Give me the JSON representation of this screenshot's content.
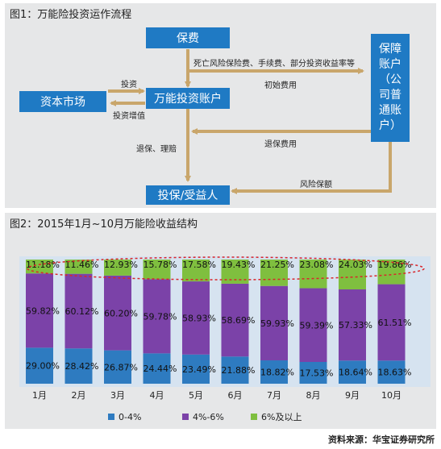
{
  "figure1": {
    "title": "图1：万能险投资运作流程",
    "nodes": {
      "premium": "保费",
      "capital_market": "资本市场",
      "ul_account": "万能投资账户",
      "guarantee_account": [
        "保障",
        "账户",
        "（公",
        "司普",
        "通账",
        "户）"
      ],
      "beneficiary": "投保/受益人"
    },
    "edges": {
      "fees": "死亡风险保险费、手续费、部分投资收益率等",
      "initial_fee": "初始费用",
      "invest": "投资",
      "invest_gain": "投资增值",
      "surrender_claim": "退保、理赔",
      "surrender_fee": "退保费用",
      "risk_coverage": "风险保额"
    }
  },
  "figure2": {
    "title": "图2：2015年1月~10月万能险收益结构",
    "source": "资料来源：华宝证券研究所"
  },
  "chart_data": {
    "type": "bar",
    "stacked": true,
    "percent": true,
    "categories": [
      "1月",
      "2月",
      "3月",
      "4月",
      "5月",
      "6月",
      "7月",
      "8月",
      "9月",
      "10月"
    ],
    "series": [
      {
        "name": "0-4%",
        "color": "#2e7bc0",
        "values": [
          29.0,
          28.42,
          26.87,
          24.44,
          23.49,
          21.88,
          18.82,
          17.53,
          18.64,
          18.63
        ]
      },
      {
        "name": "4%-6%",
        "color": "#7b42a8",
        "values": [
          59.82,
          60.12,
          60.2,
          59.78,
          58.93,
          58.69,
          59.93,
          59.39,
          57.33,
          61.51
        ]
      },
      {
        "name": "6%及以上",
        "color": "#7fbf3f",
        "values": [
          11.18,
          11.46,
          12.93,
          15.78,
          17.58,
          19.43,
          21.25,
          23.08,
          24.03,
          19.86
        ]
      }
    ],
    "value_labels": {
      "0-4%": [
        "29.00%",
        "28.42%",
        "26.87%",
        "24.44%",
        "23.49%",
        "21.88%",
        "18.82%",
        "17.53%",
        "18.64%",
        "18.63%"
      ],
      "4%-6%": [
        "59.82%",
        "60.12%",
        "60.20%",
        "59.78%",
        "58.93%",
        "58.69%",
        "59.93%",
        "59.39%",
        "57.33%",
        "61.51%"
      ],
      "6%及以上": [
        "11.18%",
        "11.46%",
        "12.93%",
        "15.78%",
        "17.58%",
        "19.43%",
        "21.25%",
        "23.08%",
        "24.03%",
        "19.86%"
      ]
    },
    "ylim": [
      0,
      100
    ],
    "legend_position": "bottom",
    "highlight": "dashed red ellipse around top series"
  }
}
